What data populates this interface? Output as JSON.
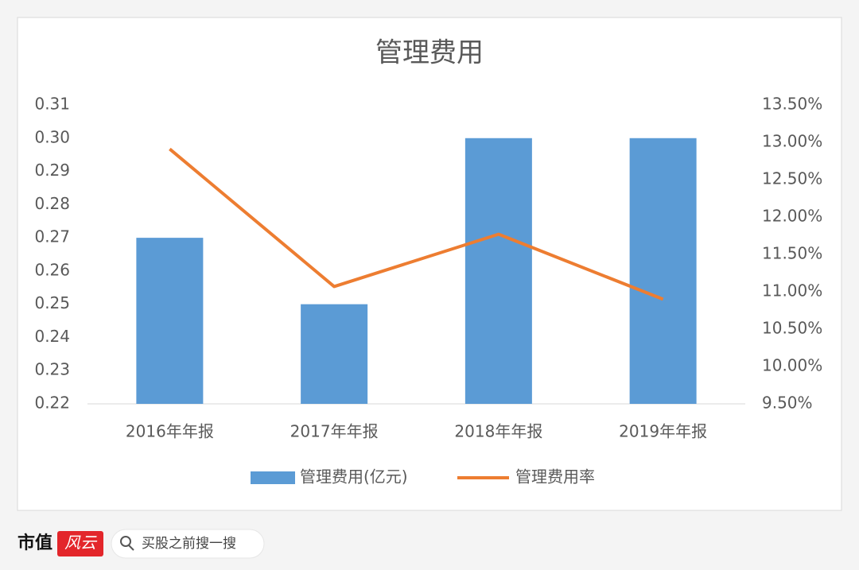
{
  "chart_data": {
    "type": "bar",
    "title": "管理费用",
    "categories": [
      "2016年年报",
      "2017年年报",
      "2018年年报",
      "2019年年报"
    ],
    "series": [
      {
        "name": "管理费用(亿元)",
        "type": "bar",
        "color": "#5b9bd5",
        "values": [
          0.27,
          0.25,
          0.3,
          0.3
        ]
      },
      {
        "name": "管理费用率",
        "type": "line",
        "color": "#ed7d31",
        "axis": "y2",
        "values": [
          12.91,
          11.07,
          11.77,
          10.9
        ]
      }
    ],
    "ylim": [
      0.22,
      0.31
    ],
    "yticks": [
      0.22,
      0.23,
      0.24,
      0.25,
      0.26,
      0.27,
      0.28,
      0.29,
      {
        "value": 0.3,
        "label": "0.30"
      },
      0.31
    ],
    "y2lim": [
      9.5,
      13.5
    ],
    "y2ticks": [
      {
        "value": 9.5,
        "label": "9.50%"
      },
      {
        "value": 10,
        "label": "10.00%"
      },
      {
        "value": 10.5,
        "label": "10.50%"
      },
      {
        "value": 11,
        "label": "11.00%"
      },
      {
        "value": 11.5,
        "label": "11.50%"
      },
      {
        "value": 12,
        "label": "12.00%"
      },
      {
        "value": 12.5,
        "label": "12.50%"
      },
      {
        "value": 13,
        "label": "13.00%"
      },
      {
        "value": 13.5,
        "label": "13.50%"
      }
    ],
    "grid": false,
    "legend": "bottom"
  },
  "footer": {
    "brand": "市值",
    "logo": "风云",
    "search": "买股之前搜一搜"
  }
}
